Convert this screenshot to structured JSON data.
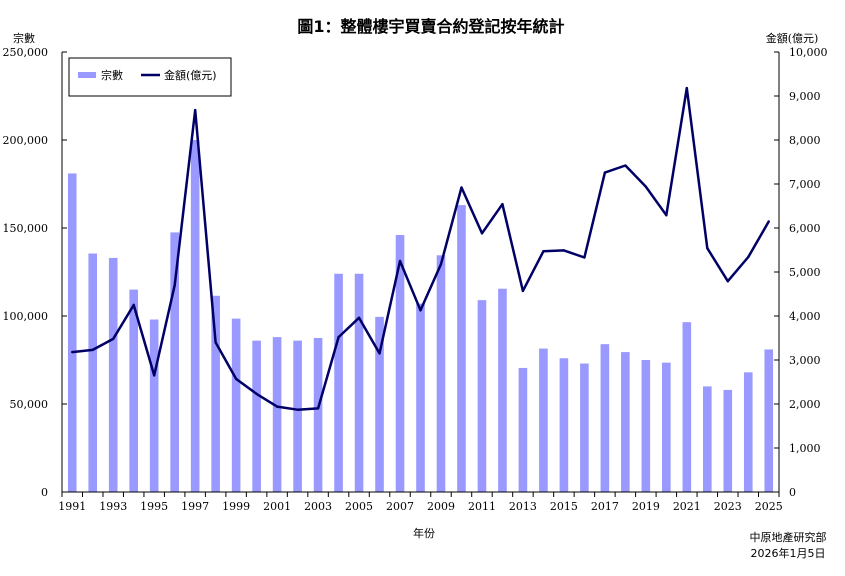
{
  "chart_data": {
    "type": "bar",
    "title": "圖1：整體樓宇買賣合約登記按年統計",
    "xlabel": "年份",
    "ylabel": "宗數",
    "y2label": "金額(億元)",
    "ylim": [
      0,
      250000
    ],
    "y2lim": [
      0,
      10000
    ],
    "yticks": [
      "0",
      "50,000",
      "100,000",
      "150,000",
      "200,000",
      "250,000"
    ],
    "y2ticks": [
      "0",
      "1,000",
      "2,000",
      "3,000",
      "4,000",
      "5,000",
      "6,000",
      "7,000",
      "8,000",
      "9,000",
      "10,000"
    ],
    "categories": [
      "1991",
      "1992",
      "1993",
      "1994",
      "1995",
      "1996",
      "1997",
      "1998",
      "1999",
      "2000",
      "2001",
      "2002",
      "2003",
      "2004",
      "2005",
      "2006",
      "2007",
      "2008",
      "2009",
      "2010",
      "2011",
      "2012",
      "2013",
      "2014",
      "2015",
      "2016",
      "2017",
      "2018",
      "2019",
      "2020",
      "2021",
      "2022",
      "2023",
      "2024",
      "2025"
    ],
    "xtick_labels": [
      "1991",
      "1993",
      "1995",
      "1997",
      "1999",
      "2001",
      "2003",
      "2005",
      "2007",
      "2009",
      "2011",
      "2013",
      "2015",
      "2017",
      "2019",
      "2021",
      "2023",
      "2025"
    ],
    "legend_position": "top-left",
    "grid": false,
    "series": [
      {
        "name": "宗數",
        "type": "bar",
        "axis": "left",
        "color": "#9999ff",
        "values": [
          181000,
          135500,
          133000,
          115000,
          98000,
          147500,
          200000,
          111500,
          98500,
          86000,
          88000,
          86000,
          87500,
          124000,
          124000,
          99500,
          146000,
          107000,
          134500,
          163000,
          109000,
          115500,
          70500,
          81500,
          76000,
          73000,
          84000,
          79500,
          75000,
          73500,
          96500,
          60000,
          58000,
          68000,
          81000
        ]
      },
      {
        "name": "金額(億元)",
        "type": "line",
        "axis": "right",
        "color": "#000066",
        "values": [
          3180,
          3230,
          3480,
          4250,
          2650,
          4700,
          8680,
          3400,
          2570,
          2230,
          1940,
          1870,
          1900,
          3520,
          3960,
          3150,
          5250,
          4130,
          5180,
          6920,
          5880,
          6540,
          4570,
          5470,
          5490,
          5330,
          7260,
          7420,
          6940,
          6290,
          9180,
          5540,
          4790,
          5340,
          6150
        ]
      }
    ]
  },
  "source": {
    "publisher": "中原地產研究部",
    "date": "2026年1月5日"
  }
}
